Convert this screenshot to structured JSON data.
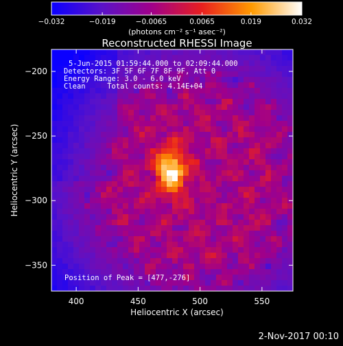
{
  "colors": {
    "background": "#000000",
    "text": "#ffffff",
    "colorbar_stops": [
      "#0b00ff",
      "#5a12c8",
      "#a0008a",
      "#e81f1f",
      "#ff9a00",
      "#ffffff"
    ]
  },
  "colorbar": {
    "min": -0.032,
    "max": 0.032,
    "tick_labels": [
      "−0.032",
      "−0.019",
      "−0.0065",
      "0.0065",
      "0.019",
      "0.032"
    ],
    "tick_values": [
      -0.032,
      -0.019,
      -0.0065,
      0.0065,
      0.019,
      0.032
    ],
    "units_label": "(photons cm⁻² s⁻¹ asec⁻²)"
  },
  "chart_data": {
    "type": "heatmap",
    "title": "Reconstructed RHESSI Image",
    "xlabel": "Heliocentric X (arcsec)",
    "ylabel": "Heliocentric Y (arcsec)",
    "xlim": [
      380,
      575
    ],
    "ylim": [
      -370,
      -183
    ],
    "x_ticks": [
      400,
      450,
      500,
      550
    ],
    "x_tick_labels": [
      "400",
      "450",
      "500",
      "550"
    ],
    "y_ticks": [
      -200,
      -250,
      -300,
      -350
    ],
    "y_tick_labels": [
      "−200",
      "−250",
      "−300",
      "−350"
    ],
    "peak": [
      477,
      -276
    ],
    "annotations": [
      "5-Jun-2015 01:59:44.000 to 02:09:44.000",
      "Detectors: 3F 5F 6F 7F 8F 9F, Att 0",
      "Energy Range: 3.0 - 6.0 keV",
      "Clean     Total counts: 4.14E+04"
    ],
    "peak_label": "Position of Peak = [477,-276]"
  },
  "timestamp": "2-Nov-2017 00:10"
}
